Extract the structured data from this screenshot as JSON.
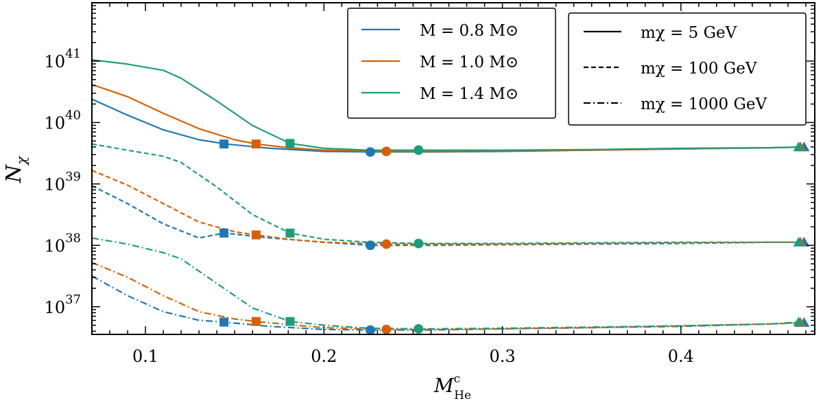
{
  "chart_data": {
    "type": "line",
    "xlabel_main": "M",
    "xlabel_sup": "c",
    "xlabel_sub": "He",
    "ylabel_main": "N",
    "ylabel_sub": "χ",
    "xlim": [
      0.07,
      0.475
    ],
    "ylog": true,
    "ylim_exp": [
      36.55,
      41.95
    ],
    "xticks": [
      {
        "value": 0.1,
        "label": "0.1"
      },
      {
        "value": 0.2,
        "label": "0.2"
      },
      {
        "value": 0.3,
        "label": "0.3"
      },
      {
        "value": 0.4,
        "label": "0.4"
      }
    ],
    "yticks": [
      {
        "exp": 37,
        "base": "10",
        "power": "37"
      },
      {
        "exp": 38,
        "base": "10",
        "power": "38"
      },
      {
        "exp": 39,
        "base": "10",
        "power": "39"
      },
      {
        "exp": 40,
        "base": "10",
        "power": "40"
      },
      {
        "exp": 41,
        "base": "10",
        "power": "41"
      }
    ],
    "colors": {
      "0.8": "#1f77b4",
      "1.0": "#d95f02",
      "1.4": "#1b9e77"
    },
    "mass_legend": [
      {
        "key": "0.8",
        "text": "M = 0.8 M⊙"
      },
      {
        "key": "1.0",
        "text": "M = 1.0 M⊙"
      },
      {
        "key": "1.4",
        "text": "M = 1.4 M⊙"
      }
    ],
    "dm_legend": [
      {
        "style": "solid",
        "text": "mχ = 5 GeV"
      },
      {
        "style": "dashed",
        "text": "mχ = 100 GeV"
      },
      {
        "style": "dashdot",
        "text": "mχ = 1000 GeV"
      }
    ],
    "series": [
      {
        "mass": "0.8",
        "mchi": "5",
        "style": "solid",
        "x": [
          0.07,
          0.09,
          0.11,
          0.13,
          0.145,
          0.17,
          0.2,
          0.226,
          0.26,
          0.3,
          0.35,
          0.4,
          0.45,
          0.469
        ],
        "logy": [
          40.38,
          40.12,
          39.88,
          39.72,
          39.65,
          39.58,
          39.53,
          39.52,
          39.52,
          39.53,
          39.55,
          39.57,
          39.59,
          39.6
        ],
        "square": {
          "x": 0.144,
          "logy": 39.65
        },
        "circle": {
          "x": 0.226,
          "logy": 39.52
        },
        "triangle": {
          "x": 0.469,
          "logy": 39.6
        }
      },
      {
        "mass": "1.0",
        "mchi": "5",
        "style": "solid",
        "x": [
          0.07,
          0.09,
          0.11,
          0.13,
          0.15,
          0.162,
          0.18,
          0.2,
          0.235,
          0.27,
          0.3,
          0.35,
          0.4,
          0.45,
          0.467
        ],
        "logy": [
          40.62,
          40.42,
          40.15,
          39.9,
          39.72,
          39.65,
          39.59,
          39.55,
          39.53,
          39.53,
          39.54,
          39.55,
          39.57,
          39.59,
          39.6
        ],
        "square": {
          "x": 0.162,
          "logy": 39.65
        },
        "circle": {
          "x": 0.235,
          "logy": 39.53
        },
        "triangle": {
          "x": 0.467,
          "logy": 39.6
        }
      },
      {
        "mass": "1.4",
        "mchi": "5",
        "style": "solid",
        "x": [
          0.07,
          0.09,
          0.11,
          0.12,
          0.14,
          0.16,
          0.181,
          0.2,
          0.225,
          0.253,
          0.3,
          0.35,
          0.4,
          0.45,
          0.466
        ],
        "logy": [
          41.02,
          40.95,
          40.85,
          40.72,
          40.35,
          39.95,
          39.66,
          39.58,
          39.55,
          39.55,
          39.55,
          39.56,
          39.58,
          39.59,
          39.6
        ],
        "square": {
          "x": 0.181,
          "logy": 39.66
        },
        "circle": {
          "x": 0.253,
          "logy": 39.55
        },
        "triangle": {
          "x": 0.466,
          "logy": 39.6
        }
      },
      {
        "mass": "0.8",
        "mchi": "100",
        "style": "dashed",
        "x": [
          0.07,
          0.09,
          0.11,
          0.13,
          0.144,
          0.17,
          0.2,
          0.226,
          0.26,
          0.3,
          0.35,
          0.4,
          0.45,
          0.469
        ],
        "logy": [
          38.97,
          38.68,
          38.35,
          38.12,
          38.2,
          38.12,
          38.05,
          38.0,
          38.0,
          38.01,
          38.02,
          38.03,
          38.05,
          38.05
        ],
        "square": {
          "x": 0.144,
          "logy": 38.2
        },
        "circle": {
          "x": 0.226,
          "logy": 38.0
        },
        "triangle": {
          "x": 0.469,
          "logy": 38.05
        }
      },
      {
        "mass": "1.0",
        "mchi": "100",
        "style": "dashed",
        "x": [
          0.07,
          0.09,
          0.11,
          0.13,
          0.15,
          0.162,
          0.18,
          0.2,
          0.235,
          0.27,
          0.3,
          0.35,
          0.4,
          0.45,
          0.467
        ],
        "logy": [
          39.22,
          38.98,
          38.68,
          38.38,
          38.22,
          38.17,
          38.1,
          38.05,
          38.02,
          38.02,
          38.02,
          38.03,
          38.04,
          38.05,
          38.05
        ],
        "square": {
          "x": 0.162,
          "logy": 38.17
        },
        "circle": {
          "x": 0.235,
          "logy": 38.02
        },
        "triangle": {
          "x": 0.467,
          "logy": 38.05
        }
      },
      {
        "mass": "1.4",
        "mchi": "100",
        "style": "dashed",
        "x": [
          0.07,
          0.09,
          0.11,
          0.12,
          0.14,
          0.16,
          0.181,
          0.2,
          0.225,
          0.253,
          0.3,
          0.35,
          0.4,
          0.45,
          0.466
        ],
        "logy": [
          39.65,
          39.55,
          39.45,
          39.35,
          38.95,
          38.5,
          38.2,
          38.1,
          38.05,
          38.03,
          38.03,
          38.04,
          38.05,
          38.05,
          38.05
        ],
        "square": {
          "x": 0.181,
          "logy": 38.2
        },
        "circle": {
          "x": 0.253,
          "logy": 38.03
        },
        "triangle": {
          "x": 0.466,
          "logy": 38.05
        }
      },
      {
        "mass": "0.8",
        "mchi": "1000",
        "style": "dashdot",
        "x": [
          0.07,
          0.09,
          0.11,
          0.13,
          0.144,
          0.17,
          0.2,
          0.226,
          0.26,
          0.3,
          0.35,
          0.4,
          0.45,
          0.469
        ],
        "logy": [
          37.5,
          37.18,
          36.92,
          36.78,
          36.75,
          36.68,
          36.63,
          36.62,
          36.62,
          36.64,
          36.66,
          36.68,
          36.72,
          36.74
        ],
        "square": {
          "x": 0.144,
          "logy": 36.75
        },
        "circle": {
          "x": 0.226,
          "logy": 36.62
        },
        "triangle": {
          "x": 0.469,
          "logy": 36.74
        }
      },
      {
        "mass": "1.0",
        "mchi": "1000",
        "style": "dashdot",
        "x": [
          0.07,
          0.09,
          0.11,
          0.13,
          0.15,
          0.162,
          0.18,
          0.2,
          0.235,
          0.27,
          0.3,
          0.35,
          0.4,
          0.45,
          0.467
        ],
        "logy": [
          37.72,
          37.48,
          37.18,
          36.92,
          36.8,
          36.76,
          36.71,
          36.66,
          36.63,
          36.63,
          36.64,
          36.66,
          36.69,
          36.72,
          36.74
        ],
        "square": {
          "x": 0.162,
          "logy": 36.76
        },
        "circle": {
          "x": 0.235,
          "logy": 36.63
        },
        "triangle": {
          "x": 0.467,
          "logy": 36.74
        }
      },
      {
        "mass": "1.4",
        "mchi": "1000",
        "style": "dashdot",
        "x": [
          0.07,
          0.09,
          0.11,
          0.12,
          0.14,
          0.16,
          0.181,
          0.2,
          0.225,
          0.253,
          0.3,
          0.35,
          0.4,
          0.45,
          0.466
        ],
        "logy": [
          38.12,
          38.02,
          37.88,
          37.78,
          37.38,
          36.98,
          36.76,
          36.7,
          36.65,
          36.64,
          36.65,
          36.67,
          36.69,
          36.72,
          36.75
        ],
        "square": {
          "x": 0.181,
          "logy": 36.76
        },
        "circle": {
          "x": 0.253,
          "logy": 36.64
        },
        "triangle": {
          "x": 0.466,
          "logy": 36.75
        }
      }
    ]
  }
}
